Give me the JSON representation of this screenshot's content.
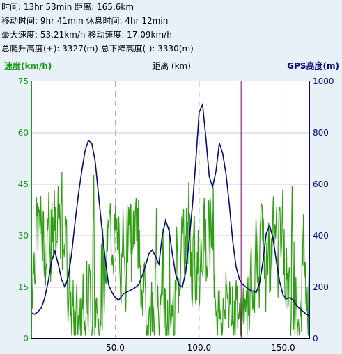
{
  "stats": {
    "line1": "时间: 13hr 53min  距离: 165.6km",
    "line2": "移动时间: 9hr 41min  休息时间: 4hr 12min",
    "line3": "最大速度: 53.21km/h  移动速度: 17.09km/h",
    "line4": "总爬升高度(+): 3327(m)  总下降高度(-): 3330(m)"
  },
  "colors": {
    "speed": "#2e9e12",
    "elevation": "#08087a",
    "axis_left": "#1a9a1a",
    "axis_right": "#08087a",
    "marker": "#800060",
    "grid": "#c8c8d8",
    "background": "#ffffff"
  },
  "chart_data": {
    "type": "line",
    "xlabel": "距离 (km)",
    "left_axis": {
      "label": "速度(km/h)",
      "range": [
        0,
        75
      ],
      "ticks": [
        0,
        15,
        30,
        45,
        60,
        75
      ]
    },
    "right_axis": {
      "label": "GPS高度(m)",
      "range": [
        0,
        1000
      ],
      "ticks": [
        0,
        200,
        400,
        600,
        800,
        1000
      ]
    },
    "x_range": [
      0,
      165.6
    ],
    "x_ticks": [
      50.0,
      100.0,
      150.0
    ],
    "x_tick_labels": [
      "50.0",
      "100.0",
      "150.0"
    ],
    "grid": "dashed vertical",
    "cursor_x": 125,
    "series": [
      {
        "name": "GPS高度(m)",
        "axis": "right",
        "x": [
          0,
          2,
          4,
          6,
          8,
          10,
          12,
          14,
          16,
          18,
          20,
          22,
          24,
          26,
          28,
          30,
          32,
          34,
          36,
          38,
          40,
          42,
          44,
          46,
          48,
          50,
          52,
          55,
          58,
          61,
          64,
          67,
          70,
          72,
          74,
          76,
          78,
          80,
          82,
          84,
          86,
          88,
          90,
          92,
          94,
          96,
          98,
          100,
          102,
          104,
          106,
          108,
          110,
          112,
          114,
          116,
          118,
          120,
          122,
          124,
          126,
          128,
          130,
          132,
          134,
          136,
          138,
          140,
          142,
          144,
          146,
          148,
          150,
          152,
          154,
          156,
          158,
          160,
          162,
          164,
          165.6
        ],
        "y": [
          100,
          95,
          105,
          120,
          160,
          220,
          300,
          340,
          290,
          230,
          200,
          240,
          330,
          450,
          560,
          650,
          730,
          770,
          760,
          690,
          560,
          430,
          310,
          210,
          180,
          160,
          150,
          175,
          185,
          195,
          210,
          260,
          330,
          345,
          320,
          290,
          400,
          460,
          420,
          330,
          250,
          210,
          200,
          260,
          380,
          520,
          690,
          880,
          910,
          780,
          630,
          590,
          650,
          760,
          720,
          640,
          520,
          380,
          280,
          230,
          210,
          200,
          190,
          185,
          180,
          215,
          300,
          410,
          440,
          390,
          300,
          220,
          170,
          155,
          160,
          150,
          130,
          115,
          105,
          95,
          90
        ]
      }
    ]
  }
}
